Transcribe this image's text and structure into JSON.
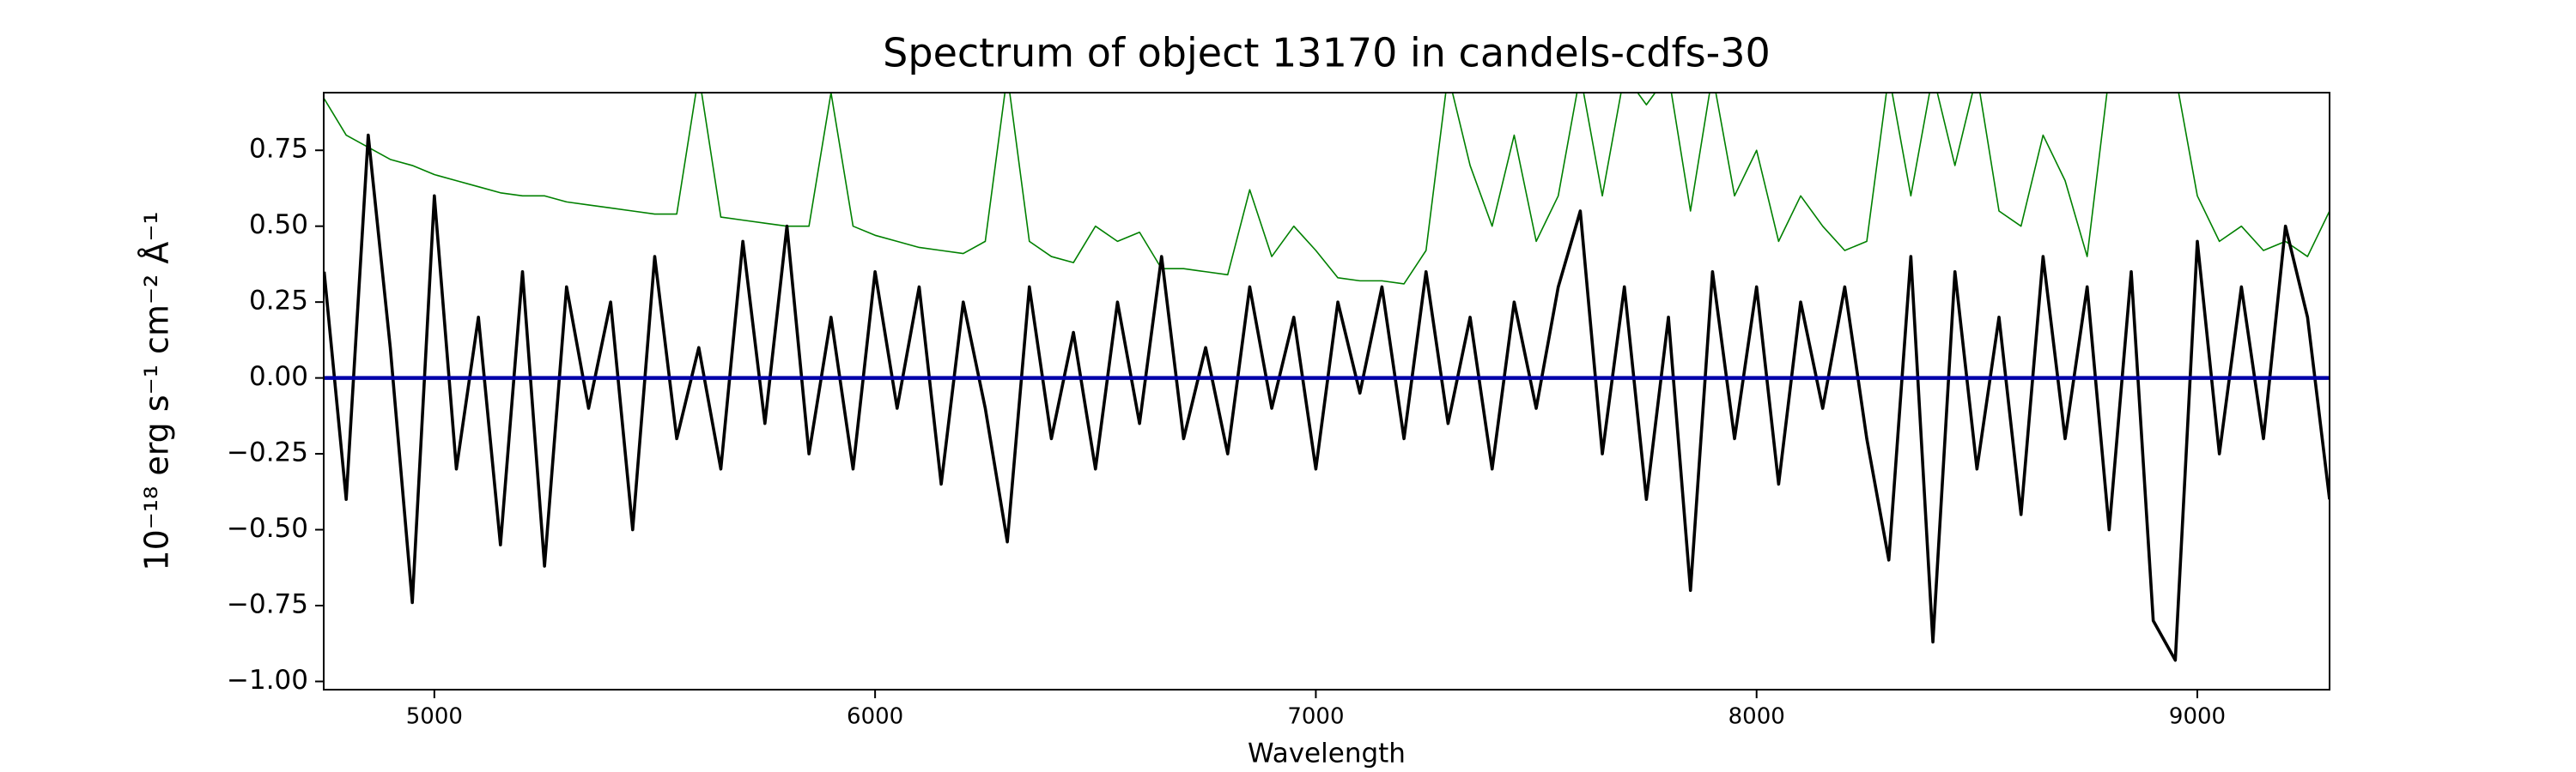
{
  "chart_data": {
    "type": "line",
    "title": "Spectrum of object 13170 in candels-cdfs-30",
    "xlabel": "Wavelength",
    "ylabel": "10⁻¹⁸ erg s⁻¹ cm⁻² Å⁻¹",
    "x": [
      4750,
      4800,
      4850,
      4900,
      4950,
      5000,
      5050,
      5100,
      5150,
      5200,
      5250,
      5300,
      5350,
      5400,
      5450,
      5500,
      5550,
      5600,
      5650,
      5700,
      5750,
      5800,
      5850,
      5900,
      5950,
      6000,
      6050,
      6100,
      6150,
      6200,
      6250,
      6300,
      6350,
      6400,
      6450,
      6500,
      6550,
      6600,
      6650,
      6700,
      6750,
      6800,
      6850,
      6900,
      6950,
      7000,
      7050,
      7100,
      7150,
      7200,
      7250,
      7300,
      7350,
      7400,
      7450,
      7500,
      7550,
      7600,
      7650,
      7700,
      7750,
      7800,
      7850,
      7900,
      7950,
      8000,
      8050,
      8100,
      8150,
      8200,
      8250,
      8300,
      8350,
      8400,
      8450,
      8500,
      8550,
      8600,
      8650,
      8700,
      8750,
      8800,
      8850,
      8900,
      8950,
      9000,
      9050,
      9100,
      9150,
      9200,
      9250,
      9300
    ],
    "series": [
      {
        "color": "#008000",
        "values": [
          0.92,
          0.8,
          0.76,
          0.72,
          0.7,
          0.67,
          0.65,
          0.63,
          0.61,
          0.6,
          0.6,
          0.58,
          0.57,
          0.56,
          0.55,
          0.54,
          0.54,
          1.0,
          0.53,
          0.52,
          0.51,
          0.5,
          0.5,
          0.94,
          0.5,
          0.47,
          0.45,
          0.43,
          0.42,
          0.41,
          0.45,
          1.0,
          0.45,
          0.4,
          0.38,
          0.5,
          0.45,
          0.48,
          0.36,
          0.36,
          0.35,
          0.34,
          0.62,
          0.4,
          0.5,
          0.42,
          0.33,
          0.32,
          0.32,
          0.31,
          0.42,
          1.0,
          0.7,
          0.5,
          0.8,
          0.45,
          0.6,
          1.0,
          0.6,
          1.0,
          0.9,
          1.0,
          0.55,
          1.0,
          0.6,
          0.75,
          0.45,
          0.6,
          0.5,
          0.42,
          0.45,
          1.0,
          0.6,
          1.0,
          0.7,
          1.0,
          0.55,
          0.5,
          0.8,
          0.65,
          0.4,
          1.0,
          1.0,
          1.0,
          1.0,
          0.6,
          0.45,
          0.5,
          0.42,
          0.45,
          0.4,
          0.55
        ]
      },
      {
        "color": "#000000",
        "values": [
          0.35,
          -0.4,
          0.8,
          0.1,
          -0.74,
          0.6,
          -0.3,
          0.2,
          -0.55,
          0.35,
          -0.62,
          0.3,
          -0.1,
          0.25,
          -0.5,
          0.4,
          -0.2,
          0.1,
          -0.3,
          0.45,
          -0.15,
          0.5,
          -0.25,
          0.2,
          -0.3,
          0.35,
          -0.1,
          0.3,
          -0.35,
          0.25,
          -0.1,
          -0.54,
          0.3,
          -0.2,
          0.15,
          -0.3,
          0.25,
          -0.15,
          0.4,
          -0.2,
          0.1,
          -0.25,
          0.3,
          -0.1,
          0.2,
          -0.3,
          0.25,
          -0.05,
          0.3,
          -0.2,
          0.35,
          -0.15,
          0.2,
          -0.3,
          0.25,
          -0.1,
          0.3,
          0.55,
          -0.25,
          0.3,
          -0.4,
          0.2,
          -0.7,
          0.35,
          -0.2,
          0.3,
          -0.35,
          0.25,
          -0.1,
          0.3,
          -0.2,
          -0.6,
          0.4,
          -0.87,
          0.35,
          -0.3,
          0.2,
          -0.45,
          0.4,
          -0.2,
          0.3,
          -0.5,
          0.35,
          -0.8,
          -0.93,
          0.45,
          -0.25,
          0.3,
          -0.2,
          0.5,
          0.2,
          -0.4
        ]
      },
      {
        "color": "#0000aa",
        "values": [
          0,
          0,
          0,
          0,
          0,
          0,
          0,
          0,
          0,
          0,
          0,
          0,
          0,
          0,
          0,
          0,
          0,
          0,
          0,
          0,
          0,
          0,
          0,
          0,
          0,
          0,
          0,
          0,
          0,
          0,
          0,
          0,
          0,
          0,
          0,
          0,
          0,
          0,
          0,
          0,
          0,
          0,
          0,
          0,
          0,
          0,
          0,
          0,
          0,
          0,
          0,
          0,
          0,
          0,
          0,
          0,
          0,
          0,
          0,
          0,
          0,
          0,
          0,
          0,
          0,
          0,
          0,
          0,
          0,
          0,
          0,
          0,
          0,
          0,
          0,
          0,
          0,
          0,
          0,
          0,
          0,
          0,
          0,
          0,
          0,
          0,
          0,
          0,
          0,
          0,
          0,
          0
        ]
      }
    ],
    "xlim": [
      4749,
      9300
    ],
    "ylim": [
      -1.027,
      0.94
    ],
    "xticks": [
      5000,
      6000,
      7000,
      8000,
      9000
    ],
    "yticks": [
      {
        "value": -1,
        "label": "−1.00"
      },
      {
        "value": -0.75,
        "label": "−0.75"
      },
      {
        "value": -0.5,
        "label": "−0.50"
      },
      {
        "value": -0.25,
        "label": "−0.25"
      },
      {
        "value": 0,
        "label": "0.00"
      },
      {
        "value": 0.25,
        "label": "0.25"
      },
      {
        "value": 0.5,
        "label": "0.50"
      },
      {
        "value": 0.75,
        "label": "0.75"
      }
    ]
  }
}
